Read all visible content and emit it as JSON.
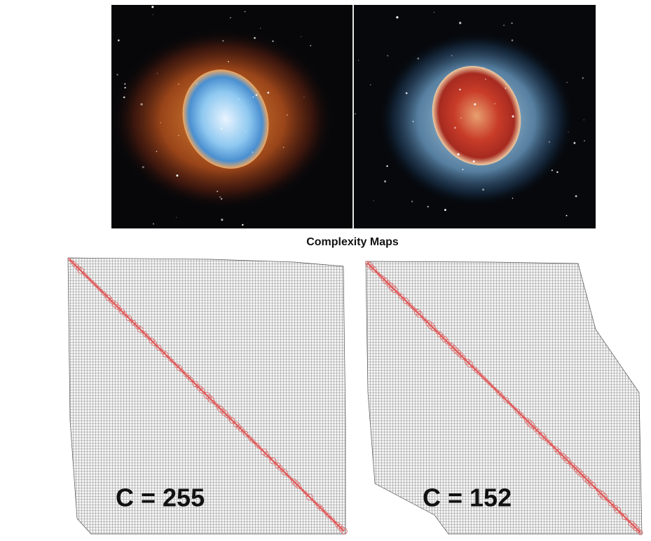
{
  "caption": {
    "title": "Complexity Maps"
  },
  "maps": [
    {
      "label": "C = 255"
    },
    {
      "label": "C = 152"
    }
  ]
}
